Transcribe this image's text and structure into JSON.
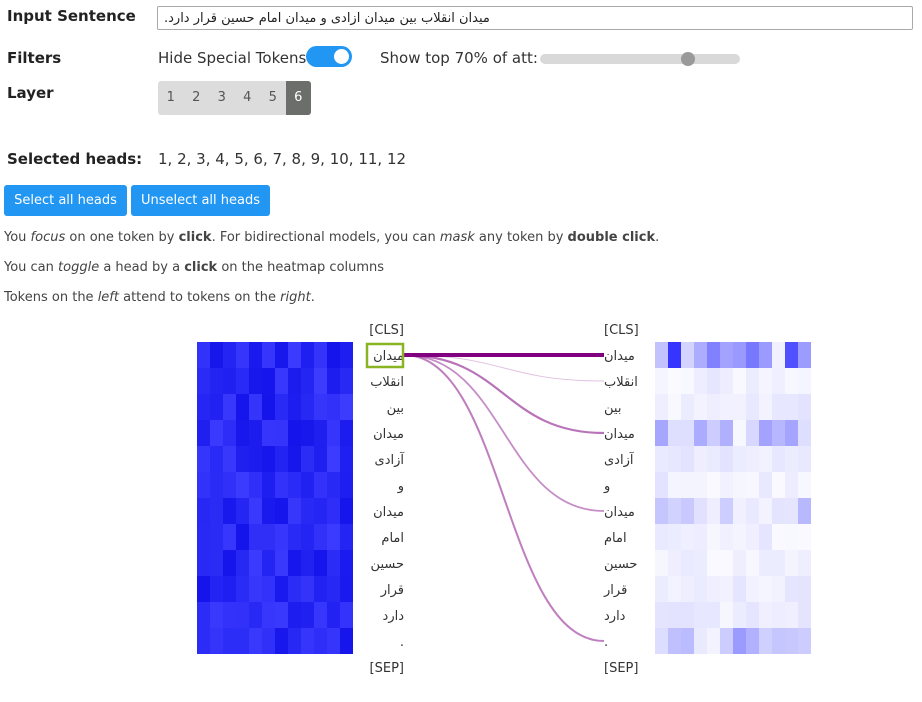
{
  "labels": {
    "input_sentence": "Input Sentence",
    "filters": "Filters",
    "layer": "Layer",
    "selected_heads": "Selected heads:"
  },
  "input": {
    "value": "میدان انقلاب بین میدان آزادی و میدان امام حسین قرار دارد."
  },
  "filters": {
    "hide_special_tokens_label": "Hide Special Tokens",
    "hide_special_tokens_on": true,
    "show_top_label": "Show top 70% of att:",
    "show_top_value": 0.7
  },
  "layers": {
    "items": [
      "1",
      "2",
      "3",
      "4",
      "5",
      "6"
    ],
    "selected": "6"
  },
  "heads": {
    "selected_text": "1, 2, 3, 4, 5, 6, 7, 8, 9, 10, 11, 12"
  },
  "buttons": {
    "select_all": "Select all heads",
    "unselect_all": "Unselect all heads"
  },
  "help": {
    "line1": [
      "You ",
      "focus",
      " on one token by ",
      "click",
      ". For bidirectional models, you can ",
      "mask",
      " any token by ",
      "double click",
      "."
    ],
    "line2": [
      "You can ",
      "toggle",
      " a head by a ",
      "click",
      " on the heatmap columns"
    ],
    "line3": [
      "Tokens on the ",
      "left",
      " attend to tokens on the ",
      "right",
      "."
    ]
  },
  "tokens": [
    "[CLS]",
    "میدان",
    "انقلاب",
    "بین",
    "میدان",
    "آزادی",
    "و",
    "میدان",
    "امام",
    "حسین",
    "قرار",
    "دارد",
    ".",
    "[SEP]"
  ],
  "focused_token_index": 1,
  "attention_from_focus": [
    0,
    1.0,
    0.18,
    0.0,
    0.55,
    0.0,
    0.0,
    0.45,
    0.0,
    0.0,
    0.0,
    0.0,
    0.5,
    0
  ],
  "colors": {
    "accent": "#2196f3",
    "attention_line": "#800080",
    "focus_box": "#8ab523"
  }
}
